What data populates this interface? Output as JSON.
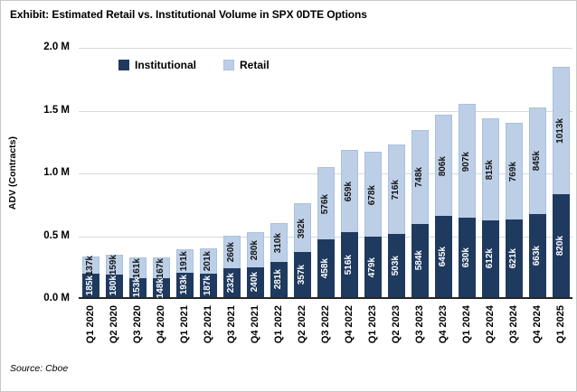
{
  "title": "Exhibit: Estimated Retail vs. Institutional Volume in SPX 0DTE Options",
  "source": "Source: Cboe",
  "colors": {
    "institutional": "#1F3A5F",
    "retail": "#BCCFE6",
    "retail_border": "#A9C0DE",
    "gridline": "#D9D9D9",
    "axis_line": "#262626",
    "inst_label": "#FFFFFF",
    "retail_label": "#141414"
  },
  "chart_data": {
    "type": "bar",
    "stacked": true,
    "title": "Exhibit: Estimated Retail vs. Institutional Volume in SPX 0DTE Options",
    "ylabel": "ADV (Contracts)",
    "xlabel": "",
    "unit": "thousands of contracts (k)",
    "value_suffix": "k",
    "ymax_k": 2000,
    "ylim": [
      0,
      2000000
    ],
    "grid": true,
    "legend_position": "top-left-inside",
    "ytick_labels": [
      "2.0 M",
      "1.5 M",
      "1.0 M",
      "0.5 M",
      "0.0 M"
    ],
    "categories": [
      "Q1 2020",
      "Q2 2020",
      "Q3 2020",
      "Q4 2020",
      "Q1 2021",
      "Q2 2021",
      "Q3 2021",
      "Q4 2021",
      "Q1 2022",
      "Q2 2022",
      "Q3 2022",
      "Q4 2022",
      "Q1 2023",
      "Q2 2023",
      "Q3 2023",
      "Q4 2023",
      "Q1 2024",
      "Q2 2024",
      "Q3 2024",
      "Q4 2024",
      "Q1 2025"
    ],
    "series": [
      {
        "name": "Institutional",
        "values_k": [
          185,
          180,
          153,
          148,
          193,
          187,
          232,
          240,
          281,
          357,
          458,
          516,
          479,
          503,
          584,
          645,
          630,
          612,
          621,
          663,
          820
        ]
      },
      {
        "name": "Retail",
        "values_k": [
          137,
          159,
          161,
          167,
          191,
          201,
          260,
          280,
          310,
          392,
          576,
          659,
          678,
          716,
          748,
          806,
          907,
          815,
          769,
          845,
          1013
        ]
      }
    ]
  }
}
